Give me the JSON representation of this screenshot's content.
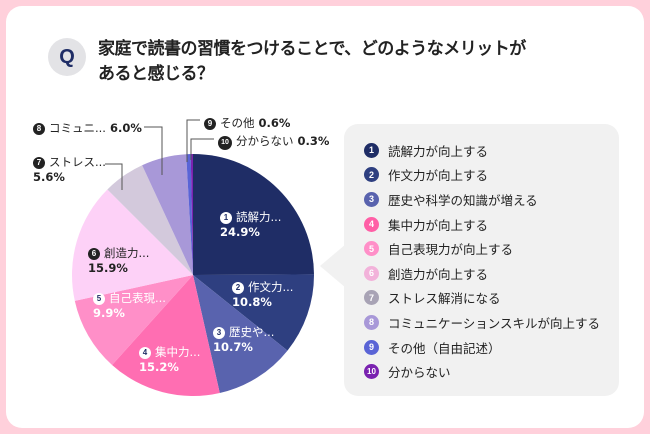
{
  "header": {
    "q_badge": "Q",
    "title": "家庭で読書の習慣をつけることで、どのようなメリットがあると感じる？"
  },
  "chart_data": {
    "type": "pie",
    "title": "家庭で読書の習慣をつけることで、どのようなメリットがあると感じる？",
    "start": "12 o'clock, clockwise",
    "slices": [
      {
        "num": "1",
        "short": "読解力...",
        "label": "読解力が向上する",
        "value": 24.9,
        "value_label": "24.9%",
        "color": "#1f2d66"
      },
      {
        "num": "2",
        "short": "作文力...",
        "label": "作文力が向上する",
        "value": 10.8,
        "value_label": "10.8%",
        "color": "#2e3f80"
      },
      {
        "num": "3",
        "short": "歴史や...",
        "label": "歴史や科学の知識が増える",
        "value": 10.7,
        "value_label": "10.7%",
        "color": "#5963ae"
      },
      {
        "num": "4",
        "short": "集中力...",
        "label": "集中力が向上する",
        "value": 15.2,
        "value_label": "15.2%",
        "color": "#ff6eb2"
      },
      {
        "num": "5",
        "short": "自己表現...",
        "label": "自己表現力が向上する",
        "value": 9.9,
        "value_label": "9.9%",
        "color": "#ff8fc8"
      },
      {
        "num": "6",
        "short": "創造力...",
        "label": "創造力が向上する",
        "value": 15.9,
        "value_label": "15.9%",
        "color": "#fdd1f7"
      },
      {
        "num": "7",
        "short": "ストレス...",
        "label": "ストレス解消になる",
        "value": 5.6,
        "value_label": "5.6%",
        "color": "#d3c9dc"
      },
      {
        "num": "8",
        "short": "コミュニ...",
        "label": "コミュニケーションスキルが向上する",
        "value": 6.0,
        "value_label": "6.0%",
        "color": "#a898d8"
      },
      {
        "num": "9",
        "short": "その他",
        "label": "その他（自由記述）",
        "value": 0.6,
        "value_label": "0.6%",
        "color": "#5a64d6"
      },
      {
        "num": "10",
        "short": "分からない",
        "label": "分からない",
        "value": 0.3,
        "value_label": "0.3%",
        "color": "#7a22b0"
      }
    ],
    "legend_position": "right"
  },
  "legend_badge_colors": [
    "#1f2d66",
    "#2e3f80",
    "#5963ae",
    "#ff5fa6",
    "#ff8fc8",
    "#f2b2da",
    "#a8a3b5",
    "#a898d8",
    "#5a64d6",
    "#7a22b0"
  ]
}
